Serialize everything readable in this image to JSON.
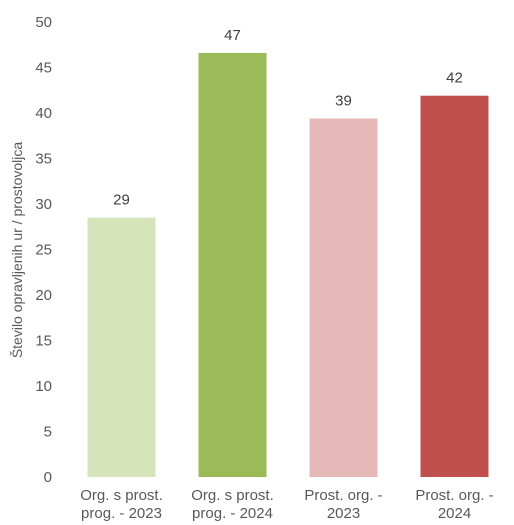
{
  "chart_data": {
    "type": "bar",
    "title": "",
    "xlabel": "",
    "ylabel": "Število opravljenih ur / prostovoljca",
    "ylim": [
      0,
      50
    ],
    "yticks": [
      0,
      5,
      10,
      15,
      20,
      25,
      30,
      35,
      40,
      45,
      50
    ],
    "grid": false,
    "legend": "none",
    "categories": [
      [
        "Org. s prost.",
        "prog. - 2023"
      ],
      [
        "Org. s prost.",
        "prog. - 2024"
      ],
      [
        "Prost. org. -",
        "2023"
      ],
      [
        "Prost. org. -",
        "2024"
      ]
    ],
    "values": [
      28.5,
      46.6,
      39.4,
      41.9
    ],
    "data_labels": [
      "29",
      "47",
      "39",
      "42"
    ],
    "colors": [
      "#d6e4bc",
      "#9bbb59",
      "#e6b9b8",
      "#c0504d"
    ]
  }
}
